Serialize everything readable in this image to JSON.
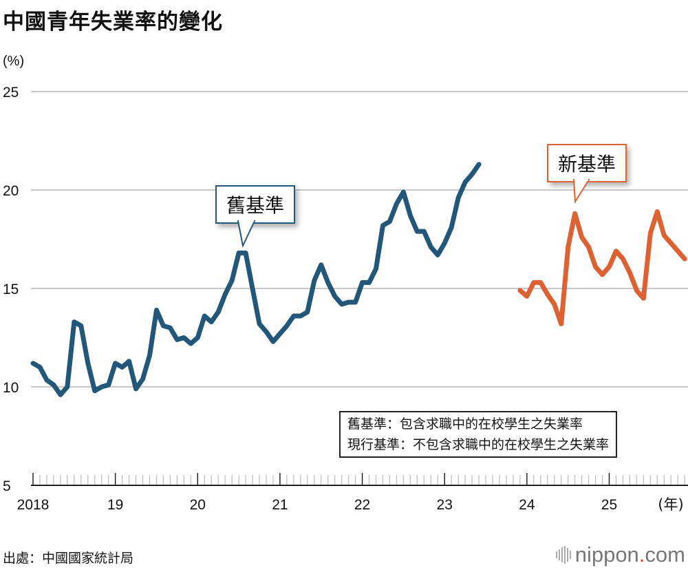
{
  "chart_data": {
    "type": "line",
    "title": "中國青年失業率的變化",
    "ylabel": "(%)",
    "xlabel": "(年)",
    "ylim": [
      5,
      25
    ],
    "yticks": [
      5,
      10,
      15,
      20,
      25
    ],
    "xticks": [
      {
        "date": "2018-01",
        "label": "2018"
      },
      {
        "date": "2019-01",
        "label": "19"
      },
      {
        "date": "2020-01",
        "label": "20"
      },
      {
        "date": "2021-01",
        "label": "21"
      },
      {
        "date": "2022-01",
        "label": "22"
      },
      {
        "date": "2023-01",
        "label": "23"
      },
      {
        "date": "2024-01",
        "label": "24"
      },
      {
        "date": "2025-01",
        "label": "25"
      }
    ],
    "xlim": [
      "2018-01",
      "2025-12"
    ],
    "grid": true,
    "series": [
      {
        "name": "舊基準",
        "color": "#22577a",
        "start": "2018-01",
        "values": [
          11.2,
          11.0,
          10.35,
          10.1,
          9.6,
          10.0,
          13.3,
          13.1,
          11.2,
          9.8,
          10.0,
          10.1,
          11.2,
          11.0,
          11.3,
          9.9,
          10.4,
          11.6,
          13.9,
          13.1,
          13.0,
          12.4,
          12.5,
          12.2,
          12.5,
          13.6,
          13.3,
          13.8,
          14.7,
          15.4,
          16.8,
          16.8,
          15.0,
          13.2,
          12.8,
          12.3,
          12.7,
          13.1,
          13.6,
          13.6,
          13.8,
          15.4,
          16.2,
          15.3,
          14.6,
          14.2,
          14.3,
          14.3,
          15.3,
          15.3,
          16.0,
          18.2,
          18.4,
          19.3,
          19.9,
          18.7,
          17.9,
          17.9,
          17.1,
          16.7,
          17.3,
          18.1,
          19.6,
          20.4,
          20.8,
          21.3
        ]
      },
      {
        "name": "新基準",
        "color": "#dc6133",
        "start": "2023-12",
        "values": [
          14.9,
          14.6,
          15.3,
          15.3,
          14.7,
          14.2,
          13.2,
          17.1,
          18.8,
          17.6,
          17.1,
          16.1,
          15.7,
          16.1,
          16.9,
          16.5,
          15.8,
          14.9,
          14.5,
          17.8,
          18.9,
          17.7,
          17.3,
          16.9,
          16.5
        ]
      }
    ],
    "annotations": [
      "舊基準",
      "新基準"
    ],
    "note": [
      "舊基準：包含求職中的在校學生之失業率",
      "現行基準：不包含求職中的在校學生之失業率"
    ]
  },
  "source": "出處：中國國家統計局",
  "logo": {
    "name": "nippon",
    "dot": ".",
    "tld": "com"
  }
}
